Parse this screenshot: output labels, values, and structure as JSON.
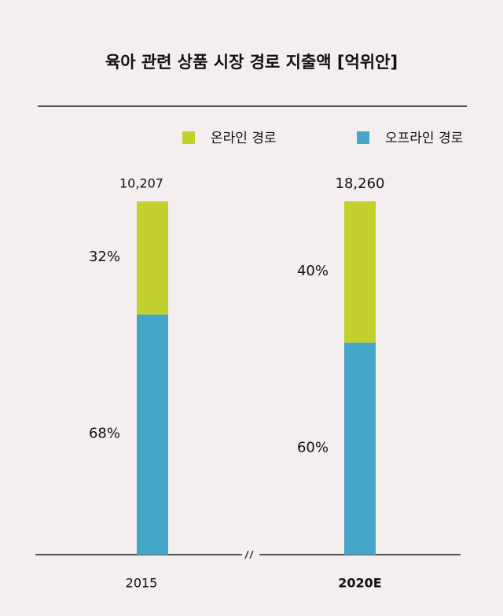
{
  "chart_data": {
    "type": "stacked_bar_100",
    "title": "육아 관련 상품 시장 경로 지출액 [억위안]",
    "categories": [
      "2015",
      "2020E"
    ],
    "series": [
      {
        "name": "온라인 경로",
        "color": "#c2d12f",
        "values": [
          32,
          40
        ],
        "value_labels": [
          "32%",
          "40%"
        ]
      },
      {
        "name": "오프라인 경로",
        "color": "#46a6c8",
        "values": [
          68,
          60
        ],
        "value_labels": [
          "68%",
          "60%"
        ]
      }
    ],
    "totals": [
      10207,
      18260
    ],
    "total_labels": [
      "10,207",
      "18,260"
    ]
  }
}
